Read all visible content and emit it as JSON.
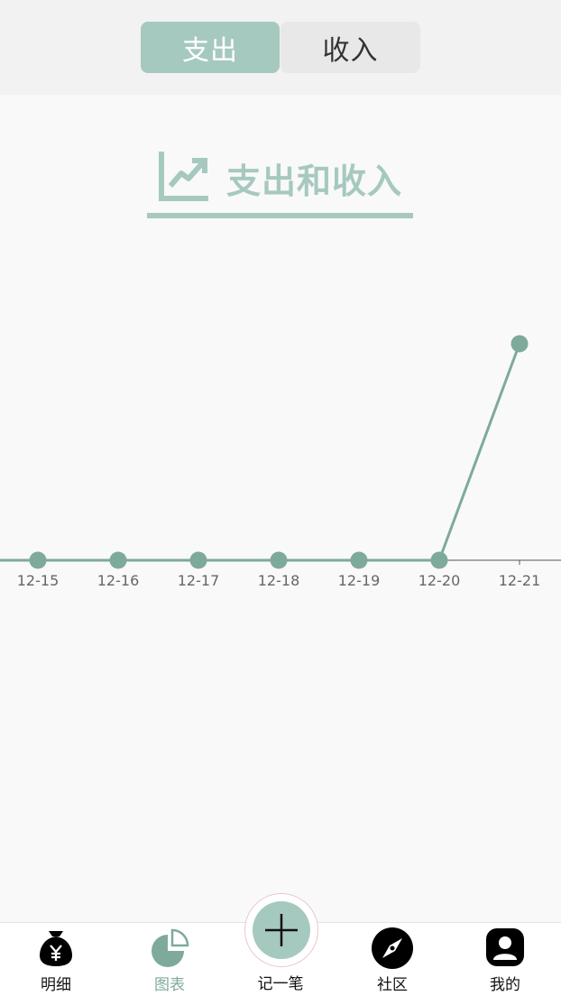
{
  "segment": {
    "options": [
      "支出",
      "收入"
    ],
    "selected": "支出"
  },
  "section": {
    "title": "支出和收入",
    "icon": "line-chart-icon"
  },
  "chart_data": {
    "type": "line",
    "categories": [
      "12-15",
      "12-16",
      "12-17",
      "12-18",
      "12-19",
      "12-20",
      "12-21"
    ],
    "series": [
      {
        "values": [
          0,
          0,
          0,
          0,
          0,
          0,
          1
        ]
      }
    ],
    "title": "",
    "xlabel": "",
    "ylabel": "",
    "ylim": [
      0,
      1
    ],
    "grid": false,
    "legend": "none",
    "color": "#7eaa9b"
  },
  "tabbar": {
    "items": [
      {
        "label": "明细",
        "icon": "money-bag-icon",
        "active": false
      },
      {
        "label": "图表",
        "icon": "pie-chart-icon",
        "active": true
      },
      {
        "label": "社区",
        "icon": "compass-icon",
        "active": false
      },
      {
        "label": "我的",
        "icon": "profile-icon",
        "active": false
      }
    ],
    "add": {
      "label": "记一笔",
      "icon": "plus-icon"
    }
  },
  "colors": {
    "accent": "#a6c9bf",
    "line": "#7eaa9b",
    "axis": "#555555"
  }
}
